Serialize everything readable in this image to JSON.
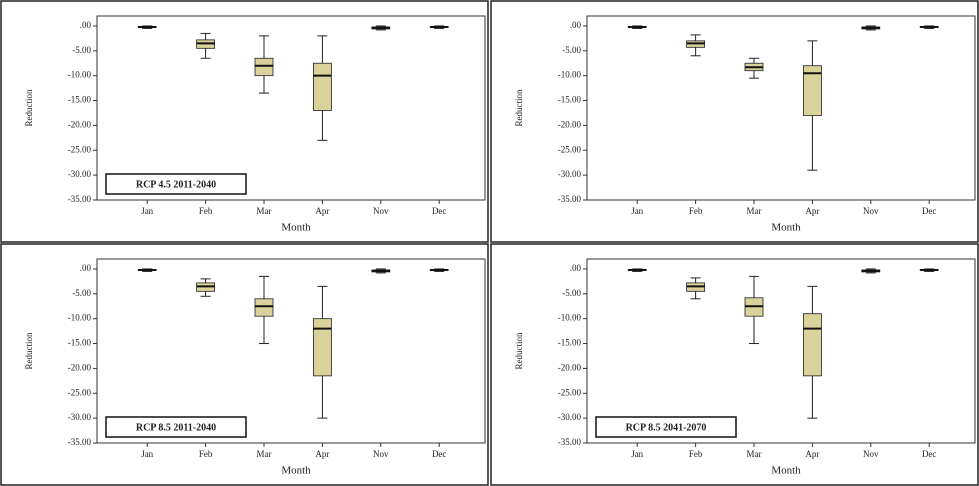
{
  "chart_data": [
    {
      "type": "box",
      "xlabel": "Month",
      "ylabel": "Reduction",
      "annotation": "RCP 4.5 2011-2040",
      "color": "#d9d29a",
      "categories": [
        "Jan",
        "Feb",
        "Mar",
        "Apr",
        "Nov",
        "Dec"
      ],
      "min": [
        -0.5,
        -6.5,
        -13.5,
        -23,
        -0.8,
        -0.5
      ],
      "q1": [
        -0.3,
        -4.5,
        -10,
        -17,
        -0.6,
        -0.3
      ],
      "median": [
        -0.2,
        -3.5,
        -8,
        -10,
        -0.4,
        -0.2
      ],
      "q3": [
        -0.1,
        -2.8,
        -6.5,
        -7.5,
        -0.2,
        -0.1
      ],
      "max": [
        0,
        -1.5,
        -2,
        -2,
        0,
        0
      ],
      "ylim": [
        -35,
        2
      ],
      "yticks": [
        {
          "value": 0,
          "label": ".00"
        },
        {
          "value": -5,
          "label": "-5.00"
        },
        {
          "value": -10,
          "label": "-10.00"
        },
        {
          "value": -15,
          "label": "-15.00"
        },
        {
          "value": -20,
          "label": "-20.00"
        },
        {
          "value": -25,
          "label": "-25.00"
        },
        {
          "value": -30,
          "label": "-30.00"
        },
        {
          "value": -35,
          "label": "-35.00"
        }
      ]
    },
    {
      "type": "box",
      "xlabel": "Month",
      "ylabel": "Reduction",
      "color": "#d9d29a",
      "categories": [
        "Jan",
        "Feb",
        "Mar",
        "Apr",
        "Nov",
        "Dec"
      ],
      "min": [
        -0.5,
        -6,
        -10.5,
        -29,
        -0.8,
        -0.5
      ],
      "q1": [
        -0.3,
        -4.3,
        -9,
        -18,
        -0.6,
        -0.3
      ],
      "median": [
        -0.2,
        -3.5,
        -8.3,
        -9.5,
        -0.4,
        -0.2
      ],
      "q3": [
        -0.1,
        -3,
        -7.5,
        -8,
        -0.2,
        -0.1
      ],
      "max": [
        0,
        -1.8,
        -6.5,
        -3,
        0,
        0
      ],
      "ylim": [
        -35,
        2
      ],
      "yticks": [
        {
          "value": 0,
          "label": ".00"
        },
        {
          "value": -5,
          "label": "-5.00"
        },
        {
          "value": -10,
          "label": "-10.00"
        },
        {
          "value": -15,
          "label": "-15.00"
        },
        {
          "value": -20,
          "label": "-20.00"
        },
        {
          "value": -25,
          "label": "-25.00"
        },
        {
          "value": -30,
          "label": "-30.00"
        },
        {
          "value": -35,
          "label": "-35.00"
        }
      ]
    },
    {
      "type": "box",
      "xlabel": "Month",
      "ylabel": "Reduction",
      "annotation": "RCP 8.5 2011-2040",
      "color": "#d9d29a",
      "categories": [
        "Jan",
        "Feb",
        "Mar",
        "Apr",
        "Nov",
        "Dec"
      ],
      "min": [
        -0.5,
        -5.5,
        -15,
        -30,
        -0.8,
        -0.5
      ],
      "q1": [
        -0.3,
        -4.5,
        -9.5,
        -21.5,
        -0.6,
        -0.3
      ],
      "median": [
        -0.2,
        -3.5,
        -7.5,
        -12,
        -0.4,
        -0.2
      ],
      "q3": [
        -0.1,
        -2.8,
        -6,
        -10,
        -0.2,
        -0.1
      ],
      "max": [
        0,
        -2,
        -1.5,
        -3.5,
        0,
        0
      ],
      "ylim": [
        -35,
        2
      ],
      "yticks": [
        {
          "value": 0,
          "label": ".00"
        },
        {
          "value": -5,
          "label": "-5.00"
        },
        {
          "value": -10,
          "label": "-10.00"
        },
        {
          "value": -15,
          "label": "-15.00"
        },
        {
          "value": -20,
          "label": "-20.00"
        },
        {
          "value": -25,
          "label": "-25.00"
        },
        {
          "value": -30,
          "label": "-30.00"
        },
        {
          "value": -35,
          "label": "-35.00"
        }
      ]
    },
    {
      "type": "box",
      "xlabel": "Month",
      "ylabel": "Reduction",
      "annotation": "RCP 8.5 2041-2070",
      "color": "#d9d29a",
      "categories": [
        "Jan",
        "Feb",
        "Mar",
        "Apr",
        "Nov",
        "Dec"
      ],
      "min": [
        -0.5,
        -6,
        -15,
        -30,
        -0.8,
        -0.5
      ],
      "q1": [
        -0.3,
        -4.5,
        -9.5,
        -21.5,
        -0.6,
        -0.3
      ],
      "median": [
        -0.2,
        -3.5,
        -7.5,
        -12,
        -0.4,
        -0.2
      ],
      "q3": [
        -0.1,
        -2.8,
        -5.8,
        -9,
        -0.2,
        -0.1
      ],
      "max": [
        0,
        -1.8,
        -1.5,
        -3.5,
        0,
        0
      ],
      "ylim": [
        -35,
        2
      ],
      "yticks": [
        {
          "value": 0,
          "label": ".00"
        },
        {
          "value": -5,
          "label": "-5.00"
        },
        {
          "value": -10,
          "label": "-10.00"
        },
        {
          "value": -15,
          "label": "-15.00"
        },
        {
          "value": -20,
          "label": "-20.00"
        },
        {
          "value": -25,
          "label": "-25.00"
        },
        {
          "value": -30,
          "label": "-30.00"
        },
        {
          "value": -35,
          "label": "-35.00"
        }
      ]
    }
  ]
}
